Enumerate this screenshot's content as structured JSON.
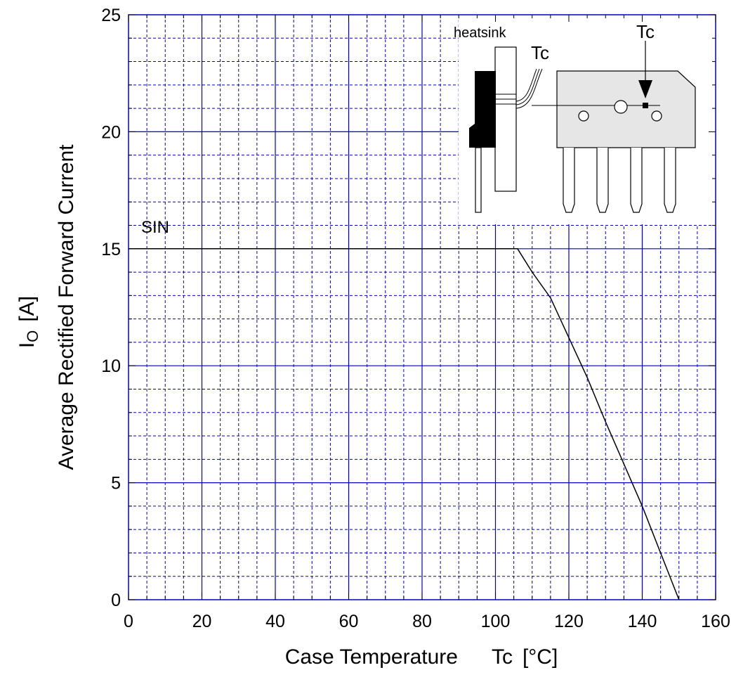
{
  "chart_data": {
    "type": "line",
    "xlabel": "Case Temperature",
    "xlabel_symbol": "Tc",
    "xlabel_unit": "[°C]",
    "ylabel_symbol_main": "I",
    "ylabel_symbol_sub": "O",
    "ylabel_unit": "[A]",
    "ylabel": "Average Rectified Forward Current",
    "xlim": [
      0,
      160
    ],
    "ylim": [
      0,
      25
    ],
    "x_ticks": [
      "0",
      "20",
      "40",
      "60",
      "80",
      "100",
      "120",
      "140",
      "160"
    ],
    "y_ticks": [
      "0",
      "5",
      "10",
      "15",
      "20",
      "25"
    ],
    "grid": true,
    "series": [
      {
        "name": "SIN",
        "x": [
          0,
          106,
          110,
          115,
          120,
          125,
          130,
          135,
          140,
          145,
          150
        ],
        "y": [
          15,
          15,
          14.0,
          12.9,
          11.2,
          9.5,
          7.6,
          5.8,
          4.0,
          2.0,
          0
        ]
      }
    ],
    "inset": {
      "heatsink_label": "heatsink",
      "tc_side_label": "Tc",
      "tc_front_label": "Tc"
    }
  },
  "colors": {
    "grid_major": "#0000cc",
    "grid_minor": "#0000cc",
    "curve": "#000000",
    "package_body": "#e6e6e6",
    "package_side": "#000000"
  }
}
